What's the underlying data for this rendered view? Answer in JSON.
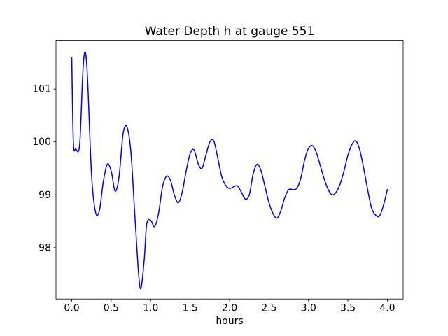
{
  "chart_data": {
    "type": "line",
    "title": "Water Depth h at gauge 551",
    "xlabel": "hours",
    "ylabel": "",
    "xlim": [
      -0.2,
      4.2
    ],
    "ylim": [
      97.03,
      101.92
    ],
    "xticks": [
      0.0,
      0.5,
      1.0,
      1.5,
      2.0,
      2.5,
      3.0,
      3.5,
      4.0
    ],
    "xtick_labels": [
      "0.0",
      "0.5",
      "1.0",
      "1.5",
      "2.0",
      "2.5",
      "3.0",
      "3.5",
      "4.0"
    ],
    "yticks": [
      98,
      99,
      100,
      101
    ],
    "ytick_labels": [
      "98",
      "99",
      "100",
      "101"
    ],
    "grid": false,
    "legend": false,
    "line_color": "#0000ff",
    "series": [
      {
        "name": "water-depth-h",
        "x": [
          0.0,
          0.02,
          0.05,
          0.1,
          0.14,
          0.17,
          0.2,
          0.25,
          0.3,
          0.35,
          0.4,
          0.45,
          0.5,
          0.55,
          0.6,
          0.65,
          0.7,
          0.75,
          0.8,
          0.85,
          0.88,
          0.92,
          0.95,
          1.0,
          1.05,
          1.1,
          1.15,
          1.2,
          1.25,
          1.3,
          1.35,
          1.4,
          1.45,
          1.5,
          1.55,
          1.6,
          1.65,
          1.7,
          1.75,
          1.8,
          1.85,
          1.9,
          1.95,
          2.0,
          2.05,
          2.1,
          2.15,
          2.2,
          2.25,
          2.3,
          2.35,
          2.4,
          2.45,
          2.5,
          2.55,
          2.6,
          2.65,
          2.7,
          2.75,
          2.8,
          2.85,
          2.9,
          2.95,
          3.0,
          3.05,
          3.1,
          3.15,
          3.2,
          3.25,
          3.3,
          3.35,
          3.4,
          3.45,
          3.5,
          3.55,
          3.6,
          3.65,
          3.7,
          3.75,
          3.8,
          3.85,
          3.9,
          3.95,
          4.0
        ],
        "y": [
          101.6,
          100.0,
          99.87,
          99.95,
          101.3,
          101.7,
          101.2,
          99.4,
          98.68,
          98.7,
          99.25,
          99.58,
          99.45,
          99.07,
          99.35,
          100.15,
          100.28,
          99.8,
          98.6,
          97.45,
          97.25,
          97.8,
          98.45,
          98.52,
          98.4,
          98.65,
          99.15,
          99.35,
          99.28,
          99.0,
          98.85,
          99.05,
          99.45,
          99.78,
          99.85,
          99.6,
          99.5,
          99.75,
          100.0,
          100.02,
          99.7,
          99.35,
          99.18,
          99.12,
          99.15,
          99.17,
          99.05,
          98.92,
          99.0,
          99.4,
          99.58,
          99.45,
          99.15,
          98.85,
          98.65,
          98.56,
          98.7,
          98.95,
          99.1,
          99.1,
          99.12,
          99.3,
          99.65,
          99.88,
          99.93,
          99.8,
          99.55,
          99.3,
          99.1,
          99.0,
          99.05,
          99.2,
          99.45,
          99.75,
          99.95,
          100.02,
          99.85,
          99.5,
          99.1,
          98.75,
          98.62,
          98.6,
          98.8,
          99.1
        ]
      }
    ]
  }
}
